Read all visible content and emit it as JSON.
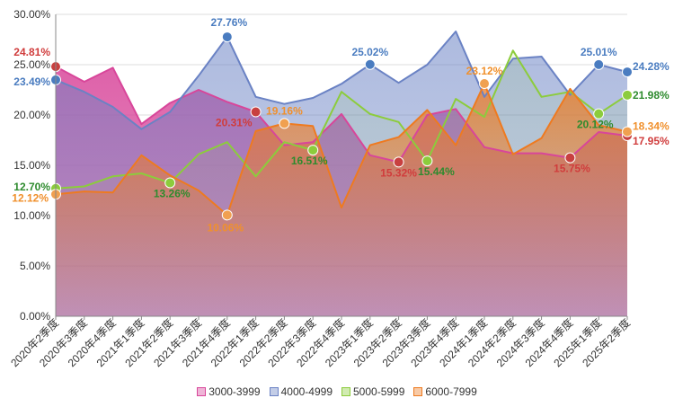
{
  "chart_data": {
    "type": "area",
    "title": "",
    "xlabel": "",
    "ylabel": "",
    "ylim": [
      0,
      30
    ],
    "yticks": [
      "0.00%",
      "5.00%",
      "10.00%",
      "15.00%",
      "20.00%",
      "25.00%",
      "30.00%"
    ],
    "categories": [
      "2020年2季度",
      "2020年3季度",
      "2020年4季度",
      "2021年1季度",
      "2021年2季度",
      "2021年3季度",
      "2021年4季度",
      "2022年1季度",
      "2022年2季度",
      "2022年3季度",
      "2022年4季度",
      "2023年1季度",
      "2023年2季度",
      "2023年3季度",
      "2023年4季度",
      "2024年1季度",
      "2024年2季度",
      "2024年3季度",
      "2024年4季度",
      "2025年1季度",
      "2025年2季度"
    ],
    "legend_position": "bottom",
    "series": [
      {
        "name": "3000-3999",
        "color": "#d8469a",
        "values": [
          24.81,
          23.3,
          24.7,
          19.1,
          21.2,
          22.5,
          21.3,
          20.31,
          17.0,
          17.3,
          20.1,
          16.0,
          15.32,
          20.0,
          20.6,
          16.8,
          16.2,
          16.2,
          15.75,
          18.3,
          17.95
        ],
        "labels": [
          {
            "i": 0,
            "text": "24.81%"
          },
          {
            "i": 7,
            "text": "20.31%"
          },
          {
            "i": 12,
            "text": "15.32%"
          },
          {
            "i": 18,
            "text": "15.75%"
          },
          {
            "i": 20,
            "text": "17.95%"
          }
        ],
        "label_color": "#d03c3c",
        "marker_color": "#c84040"
      },
      {
        "name": "4000-4999",
        "color": "#6a82c4",
        "values": [
          23.49,
          22.3,
          20.8,
          18.6,
          20.3,
          23.9,
          27.76,
          21.8,
          21.1,
          21.7,
          23.1,
          25.02,
          23.2,
          25.0,
          28.3,
          21.8,
          25.6,
          25.8,
          22.0,
          25.01,
          24.28
        ],
        "labels": [
          {
            "i": 0,
            "text": "23.49%"
          },
          {
            "i": 6,
            "text": "27.76%"
          },
          {
            "i": 11,
            "text": "25.02%"
          },
          {
            "i": 19,
            "text": "25.01%"
          },
          {
            "i": 20,
            "text": "24.28%"
          }
        ],
        "label_color": "#4a7cc0",
        "marker_color": "#4a7cc0"
      },
      {
        "name": "5000-5999",
        "color": "#8ccc3c",
        "values": [
          12.7,
          12.9,
          13.9,
          14.2,
          13.26,
          16.1,
          17.3,
          13.9,
          17.3,
          16.51,
          22.3,
          20.1,
          19.3,
          15.44,
          21.6,
          19.8,
          26.4,
          21.8,
          22.3,
          20.12,
          21.98
        ],
        "labels": [
          {
            "i": 0,
            "text": "12.70%"
          },
          {
            "i": 4,
            "text": "13.26%"
          },
          {
            "i": 9,
            "text": "16.51%"
          },
          {
            "i": 13,
            "text": "15.44%"
          },
          {
            "i": 19,
            "text": "20.12%"
          },
          {
            "i": 20,
            "text": "21.98%"
          }
        ],
        "label_color": "#2e8b2e",
        "marker_color": "#8ccc3c"
      },
      {
        "name": "6000-7999",
        "color": "#ee7a20",
        "values": [
          12.12,
          12.4,
          12.3,
          16.0,
          14.0,
          12.5,
          10.06,
          18.4,
          19.16,
          18.9,
          10.8,
          17.0,
          17.8,
          20.5,
          17.0,
          23.12,
          16.1,
          17.7,
          22.6,
          19.0,
          18.34
        ],
        "labels": [
          {
            "i": 0,
            "text": "12.12%"
          },
          {
            "i": 6,
            "text": "10.06%"
          },
          {
            "i": 8,
            "text": "19.16%"
          },
          {
            "i": 15,
            "text": "23.12%"
          },
          {
            "i": 20,
            "text": "18.34%"
          }
        ],
        "label_color": "#f0902c",
        "marker_color": "#f0a050"
      }
    ]
  }
}
